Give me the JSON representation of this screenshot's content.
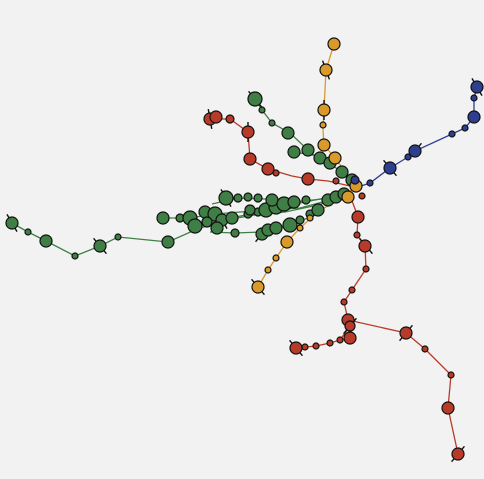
{
  "diagram": {
    "background": "#f2f2f2",
    "lines": [
      {
        "id": "green",
        "color": "#3f7f45",
        "name": ""
      },
      {
        "id": "red",
        "color": "#b83b2a",
        "name": ""
      },
      {
        "id": "orange",
        "color": "#d99a2b",
        "name": ""
      },
      {
        "id": "blue",
        "color": "#2f3f8f",
        "name": ""
      }
    ],
    "edge_color": "#3a7a3a",
    "labels": []
  }
}
